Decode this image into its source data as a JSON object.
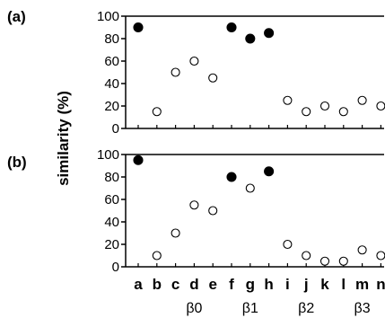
{
  "chart_data": [
    {
      "type": "scatter",
      "panel": "(a)",
      "categories": [
        "a",
        "b",
        "c",
        "d",
        "e",
        "f",
        "g",
        "h",
        "i",
        "j",
        "k",
        "l",
        "m",
        "n"
      ],
      "values": [
        90,
        15,
        50,
        60,
        45,
        90,
        80,
        85,
        25,
        15,
        20,
        15,
        25,
        20
      ],
      "filled": [
        true,
        false,
        false,
        false,
        false,
        true,
        true,
        true,
        false,
        false,
        false,
        false,
        false,
        false
      ],
      "ylim": [
        0,
        100
      ],
      "yticks": [
        0,
        20,
        40,
        60,
        80,
        100
      ],
      "grid": false
    },
    {
      "type": "scatter",
      "panel": "(b)",
      "categories": [
        "a",
        "b",
        "c",
        "d",
        "e",
        "f",
        "g",
        "h",
        "i",
        "j",
        "k",
        "l",
        "m",
        "n"
      ],
      "values": [
        95,
        10,
        30,
        55,
        50,
        80,
        70,
        85,
        20,
        10,
        5,
        5,
        15,
        10
      ],
      "filled": [
        true,
        false,
        false,
        false,
        false,
        true,
        false,
        true,
        false,
        false,
        false,
        false,
        false,
        false
      ],
      "ylim": [
        0,
        100
      ],
      "yticks": [
        0,
        20,
        40,
        60,
        80,
        100
      ],
      "grid": false
    }
  ],
  "shared": {
    "ylabel": "similarity (%)",
    "groups": [
      "β0",
      "β1",
      "β2",
      "β3"
    ],
    "marker_color": "#000000"
  }
}
